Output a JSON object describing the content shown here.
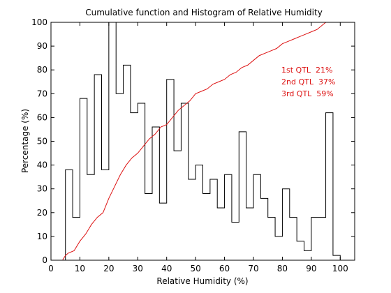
{
  "chart_data": {
    "type": "histogram-with-cumulative-line",
    "title": "Cumulative function and Histogram of Relative Humidity",
    "xlabel": "Relative Humidity (%)",
    "ylabel": "Percentage (%)",
    "xlim": [
      0,
      105
    ],
    "ylim": [
      0,
      100
    ],
    "xticks": [
      0,
      10,
      20,
      30,
      40,
      50,
      60,
      70,
      80,
      90,
      100
    ],
    "yticks": [
      0,
      10,
      20,
      30,
      40,
      50,
      60,
      70,
      80,
      90,
      100
    ],
    "grid": false,
    "histogram": {
      "color": "#000000",
      "bins": [
        {
          "x0": 5,
          "x1": 7.5,
          "value": 38
        },
        {
          "x0": 7.5,
          "x1": 10,
          "value": 18
        },
        {
          "x0": 10,
          "x1": 12.5,
          "value": 68
        },
        {
          "x0": 12.5,
          "x1": 15,
          "value": 36
        },
        {
          "x0": 15,
          "x1": 17.5,
          "value": 78
        },
        {
          "x0": 17.5,
          "x1": 20,
          "value": 38
        },
        {
          "x0": 20,
          "x1": 22.5,
          "value": 100
        },
        {
          "x0": 22.5,
          "x1": 25,
          "value": 70
        },
        {
          "x0": 25,
          "x1": 27.5,
          "value": 82
        },
        {
          "x0": 27.5,
          "x1": 30,
          "value": 62
        },
        {
          "x0": 30,
          "x1": 32.5,
          "value": 66
        },
        {
          "x0": 32.5,
          "x1": 35,
          "value": 28
        },
        {
          "x0": 35,
          "x1": 37.5,
          "value": 56
        },
        {
          "x0": 37.5,
          "x1": 40,
          "value": 24
        },
        {
          "x0": 40,
          "x1": 42.5,
          "value": 76
        },
        {
          "x0": 42.5,
          "x1": 45,
          "value": 46
        },
        {
          "x0": 45,
          "x1": 47.5,
          "value": 66
        },
        {
          "x0": 47.5,
          "x1": 50,
          "value": 34
        },
        {
          "x0": 50,
          "x1": 52.5,
          "value": 40
        },
        {
          "x0": 52.5,
          "x1": 55,
          "value": 28
        },
        {
          "x0": 55,
          "x1": 57.5,
          "value": 34
        },
        {
          "x0": 57.5,
          "x1": 60,
          "value": 22
        },
        {
          "x0": 60,
          "x1": 62.5,
          "value": 36
        },
        {
          "x0": 62.5,
          "x1": 65,
          "value": 16
        },
        {
          "x0": 65,
          "x1": 67.5,
          "value": 54
        },
        {
          "x0": 67.5,
          "x1": 70,
          "value": 22
        },
        {
          "x0": 70,
          "x1": 72.5,
          "value": 36
        },
        {
          "x0": 72.5,
          "x1": 75,
          "value": 26
        },
        {
          "x0": 75,
          "x1": 77.5,
          "value": 18
        },
        {
          "x0": 77.5,
          "x1": 80,
          "value": 10
        },
        {
          "x0": 80,
          "x1": 82.5,
          "value": 30
        },
        {
          "x0": 82.5,
          "x1": 85,
          "value": 18
        },
        {
          "x0": 85,
          "x1": 87.5,
          "value": 8
        },
        {
          "x0": 87.5,
          "x1": 90,
          "value": 4
        },
        {
          "x0": 90,
          "x1": 92.5,
          "value": 18
        },
        {
          "x0": 92.5,
          "x1": 95,
          "value": 18
        },
        {
          "x0": 95,
          "x1": 97.5,
          "value": 62
        },
        {
          "x0": 97.5,
          "x1": 100,
          "value": 2
        }
      ]
    },
    "cumulative": {
      "color": "#dd1111",
      "x": [
        0,
        4,
        5,
        6,
        8,
        10,
        12,
        14,
        16,
        18,
        20,
        22,
        24,
        26,
        28,
        30,
        32,
        34,
        36,
        38,
        40,
        42,
        44,
        46,
        48,
        50,
        52,
        54,
        56,
        58,
        60,
        62,
        64,
        66,
        68,
        70,
        72,
        74,
        76,
        78,
        80,
        82,
        84,
        86,
        88,
        90,
        92,
        94,
        95,
        100
      ],
      "y": [
        0,
        0,
        2,
        3,
        4,
        8,
        11,
        15,
        18,
        20,
        26,
        31,
        36,
        40,
        43,
        45,
        48,
        51,
        53,
        56,
        57,
        60,
        63,
        65,
        67,
        70,
        71,
        72,
        74,
        75,
        76,
        78,
        79,
        81,
        82,
        84,
        86,
        87,
        88,
        89,
        91,
        92,
        93,
        94,
        95,
        96,
        97,
        99,
        100,
        100
      ]
    },
    "annotations": [
      "1st QTL  21%",
      "2nd QTL  37%",
      "3rd QTL  59%"
    ]
  }
}
